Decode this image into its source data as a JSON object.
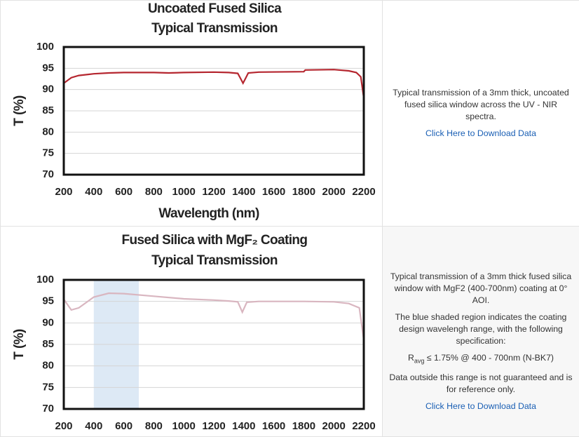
{
  "chart_data": [
    {
      "type": "line",
      "title": "Uncoated Fused Silica",
      "subtitle": "Typical Transmission",
      "xlabel": "Wavelength (nm)",
      "ylabel": "T (%)",
      "color": "#b5262f",
      "grid": true,
      "x": [
        200,
        250,
        300,
        400,
        500,
        600,
        800,
        900,
        1000,
        1200,
        1300,
        1360,
        1380,
        1395,
        1410,
        1430,
        1500,
        1800,
        1810,
        2000,
        2100,
        2150,
        2180,
        2200
      ],
      "values": [
        91.5,
        92.8,
        93.3,
        93.7,
        93.9,
        94.0,
        94.0,
        93.9,
        94.0,
        94.1,
        94.0,
        93.8,
        92.5,
        91.5,
        92.5,
        93.9,
        94.1,
        94.2,
        94.6,
        94.7,
        94.4,
        94.0,
        93.0,
        88.0
      ],
      "xlim": [
        200,
        2200
      ],
      "ylim": [
        70,
        100
      ],
      "xticks": [
        200,
        400,
        600,
        800,
        1000,
        1200,
        1400,
        1600,
        1800,
        2000,
        2200
      ],
      "yticks": [
        70,
        75,
        80,
        85,
        90,
        95,
        100
      ]
    },
    {
      "type": "line",
      "title": "Fused Silica with MgF₂ Coating",
      "subtitle": "Typical Transmission",
      "ylabel": "T (%)",
      "color": "#d9b6c0",
      "grid": true,
      "shade": {
        "from": 400,
        "to": 700,
        "color": "#dde9f5"
      },
      "x": [
        200,
        250,
        300,
        400,
        500,
        600,
        800,
        1000,
        1200,
        1300,
        1360,
        1390,
        1420,
        1500,
        1800,
        2000,
        2100,
        2170,
        2200
      ],
      "values": [
        95.5,
        93.0,
        93.5,
        96.0,
        96.9,
        96.8,
        96.2,
        95.6,
        95.3,
        95.1,
        94.9,
        92.5,
        94.8,
        95.0,
        95.0,
        94.9,
        94.5,
        93.5,
        86.0
      ],
      "xlim": [
        200,
        2200
      ],
      "ylim": [
        70,
        100
      ],
      "xticks": [
        200,
        400,
        600,
        800,
        1000,
        1200,
        1400,
        1600,
        1800,
        2000,
        2200
      ],
      "yticks": [
        70,
        75,
        80,
        85,
        90,
        95,
        100
      ]
    }
  ],
  "descriptions": [
    {
      "paragraphs": [
        "Typical transmission of a 3mm thick, uncoated fused silica window across the UV - NIR spectra."
      ],
      "link": "Click Here to Download Data"
    },
    {
      "paragraphs": [
        "Typical transmission of a 3mm thick fused silica window with MgF2 (400-700nm) coating at 0° AOI.",
        "The blue shaded region indicates the coating design wavelengh range, with the following specification:"
      ],
      "spec": {
        "symbol": "R",
        "subscript": "avg",
        "text": "≤ 1.75% @ 400 - 700nm (N-BK7)"
      },
      "note": "Data outside this range is not guaranteed and is for reference only.",
      "link": "Click Here to Download Data"
    }
  ]
}
